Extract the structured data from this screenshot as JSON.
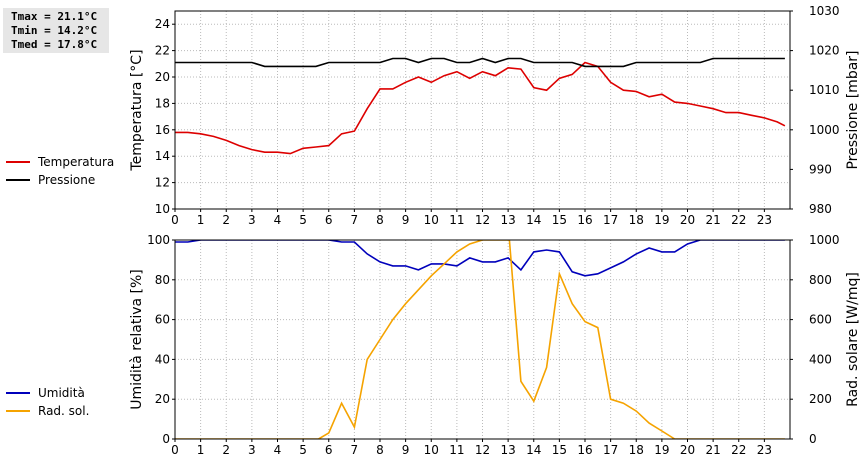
{
  "stats": {
    "tmax": "Tmax = 21.1°C",
    "tmin": "Tmin = 14.2°C",
    "tmed": "Tmed = 17.8°C"
  },
  "chart_data": [
    {
      "type": "line",
      "xlim": [
        0,
        24
      ],
      "x_ticks": [
        "0",
        "1",
        "2",
        "3",
        "4",
        "5",
        "6",
        "7",
        "8",
        "9",
        "10",
        "11",
        "12",
        "13",
        "14",
        "15",
        "16",
        "17",
        "18",
        "19",
        "20",
        "21",
        "22",
        "23"
      ],
      "ylabel": "Temperatura [°C]",
      "ylim": [
        10,
        25
      ],
      "y_ticks": [
        "10",
        "12",
        "14",
        "16",
        "18",
        "20",
        "22",
        "24"
      ],
      "y2label": "Pressione [mbar]",
      "y2lim": [
        980,
        1030
      ],
      "y2_ticks": [
        "980",
        "990",
        "1000",
        "1010",
        "1020",
        "1030"
      ],
      "grid": true,
      "legend_position": "left",
      "series": [
        {
          "name": "Temperatura",
          "color": "#dd0000",
          "axis": "left",
          "x": [
            0,
            0.5,
            1,
            1.5,
            2,
            2.5,
            3,
            3.5,
            4,
            4.5,
            5,
            5.5,
            6,
            6.5,
            7,
            7.5,
            8,
            8.5,
            9,
            9.5,
            10,
            10.5,
            11,
            11.5,
            12,
            12.5,
            13,
            13.5,
            14,
            14.5,
            15,
            15.5,
            16,
            16.5,
            17,
            17.5,
            18,
            18.5,
            19,
            19.5,
            20,
            20.5,
            21,
            21.5,
            22,
            22.5,
            23,
            23.5,
            23.8
          ],
          "values": [
            15.8,
            15.8,
            15.7,
            15.5,
            15.2,
            14.8,
            14.5,
            14.3,
            14.3,
            14.2,
            14.6,
            14.7,
            14.8,
            15.7,
            15.9,
            17.6,
            19.1,
            19.1,
            19.6,
            20.0,
            19.6,
            20.1,
            20.4,
            19.9,
            20.4,
            20.1,
            20.7,
            20.6,
            19.2,
            19.0,
            19.9,
            20.2,
            21.1,
            20.8,
            19.6,
            19.0,
            18.9,
            18.5,
            18.7,
            18.1,
            18.0,
            17.8,
            17.6,
            17.3,
            17.3,
            17.1,
            16.9,
            16.6,
            16.3
          ]
        },
        {
          "name": "Pressione",
          "color": "#000000",
          "axis": "right",
          "x": [
            0,
            0.5,
            1,
            1.5,
            2,
            2.5,
            3,
            3.5,
            4,
            4.5,
            5,
            5.5,
            6,
            6.5,
            7,
            7.5,
            8,
            8.5,
            9,
            9.5,
            10,
            10.5,
            11,
            11.5,
            12,
            12.5,
            13,
            13.5,
            14,
            14.5,
            15,
            15.5,
            16,
            16.5,
            17,
            17.5,
            18,
            18.5,
            19,
            19.5,
            20,
            20.5,
            21,
            21.5,
            22,
            22.5,
            23,
            23.5,
            23.8
          ],
          "values": [
            1017,
            1017,
            1017,
            1017,
            1017,
            1017,
            1017,
            1016,
            1016,
            1016,
            1016,
            1016,
            1017,
            1017,
            1017,
            1017,
            1017,
            1018,
            1018,
            1017,
            1018,
            1018,
            1017,
            1017,
            1018,
            1017,
            1018,
            1018,
            1017,
            1017,
            1017,
            1017,
            1016,
            1016,
            1016,
            1016,
            1017,
            1017,
            1017,
            1017,
            1017,
            1017,
            1018,
            1018,
            1018,
            1018,
            1018,
            1018,
            1018
          ]
        }
      ]
    },
    {
      "type": "line",
      "xlim": [
        0,
        24
      ],
      "x_ticks": [
        "0",
        "1",
        "2",
        "3",
        "4",
        "5",
        "6",
        "7",
        "8",
        "9",
        "10",
        "11",
        "12",
        "13",
        "14",
        "15",
        "16",
        "17",
        "18",
        "19",
        "20",
        "21",
        "22",
        "23"
      ],
      "ylabel": "Umidità relativa [%]",
      "ylim": [
        0,
        100
      ],
      "y_ticks": [
        "0",
        "20",
        "40",
        "60",
        "80",
        "100"
      ],
      "y2label": "Rad. solare [W/mq]",
      "y2lim": [
        0,
        1000
      ],
      "y2_ticks": [
        "0",
        "200",
        "400",
        "600",
        "800",
        "1000"
      ],
      "grid": true,
      "legend_position": "left",
      "series": [
        {
          "name": "Umidità",
          "color": "#0000bb",
          "axis": "left",
          "x": [
            0,
            0.5,
            1,
            1.5,
            2,
            2.5,
            3,
            3.5,
            4,
            4.5,
            5,
            5.5,
            6,
            6.5,
            7,
            7.5,
            8,
            8.5,
            9,
            9.5,
            10,
            10.5,
            11,
            11.5,
            12,
            12.5,
            13,
            13.5,
            14,
            14.5,
            15,
            15.5,
            16,
            16.5,
            17,
            17.5,
            18,
            18.5,
            19,
            19.5,
            20,
            20.5,
            21,
            21.5,
            22,
            22.5,
            23,
            23.5,
            23.8
          ],
          "values": [
            99,
            99,
            100,
            100,
            100,
            100,
            100,
            100,
            100,
            100,
            100,
            100,
            100,
            99,
            99,
            93,
            89,
            87,
            87,
            85,
            88,
            88,
            87,
            91,
            89,
            89,
            91,
            85,
            94,
            95,
            94,
            84,
            82,
            83,
            86,
            89,
            93,
            96,
            94,
            94,
            98,
            100,
            100,
            100,
            100,
            100,
            100,
            100,
            100
          ]
        },
        {
          "name": "Rad. sol.",
          "color": "#f5a300",
          "axis": "right",
          "x": [
            0,
            1,
            2,
            3,
            4,
            5,
            5.6,
            6,
            6.5,
            7,
            7.5,
            8,
            8.5,
            9,
            9.5,
            10,
            10.5,
            11,
            11.5,
            12,
            12.3,
            13,
            13.05,
            13.5,
            14,
            14.5,
            15,
            15.5,
            16,
            16.5,
            17,
            17.5,
            18,
            18.5,
            19,
            19.5,
            20,
            21,
            22,
            23,
            23.8
          ],
          "values": [
            0,
            0,
            0,
            0,
            0,
            0,
            0,
            30,
            180,
            60,
            400,
            500,
            600,
            680,
            750,
            820,
            880,
            940,
            980,
            1000,
            1000,
            1000,
            1000,
            290,
            190,
            360,
            830,
            680,
            590,
            560,
            200,
            180,
            140,
            80,
            40,
            0,
            0,
            0,
            0,
            0,
            0
          ]
        }
      ]
    }
  ]
}
